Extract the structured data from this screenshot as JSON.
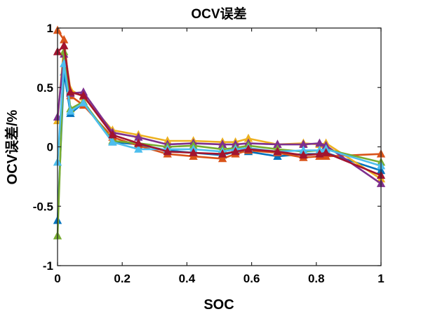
{
  "chart_data": {
    "type": "line",
    "title": "OCV误差",
    "xlabel": "SOC",
    "ylabel": "OCV误差/%",
    "xlim": [
      0,
      1
    ],
    "ylim": [
      -1,
      1
    ],
    "xticks": [
      0,
      0.2,
      0.4,
      0.6,
      0.8,
      1
    ],
    "xtick_labels": [
      "0",
      "0.2",
      "0.4",
      "0.6",
      "0.8",
      "1"
    ],
    "yticks": [
      -1,
      -0.5,
      0,
      0.5,
      1
    ],
    "ytick_labels": [
      "-1",
      "-0.5",
      "0",
      "0.5",
      "1"
    ],
    "grid": false,
    "marker": "triangle",
    "series": [
      {
        "name": "series-1",
        "color": "#0072BD",
        "x": [
          0,
          0.02,
          0.04,
          0.08,
          0.17,
          0.25,
          0.34,
          0.42,
          0.51,
          0.55,
          0.59,
          0.68,
          0.76,
          0.81,
          0.83,
          1
        ],
        "y": [
          -0.62,
          0.63,
          0.28,
          0.37,
          0.04,
          0.02,
          -0.03,
          -0.05,
          -0.07,
          -0.04,
          -0.04,
          -0.08,
          -0.06,
          -0.06,
          -0.05,
          -0.2
        ]
      },
      {
        "name": "series-2",
        "color": "#D95319",
        "x": [
          0,
          0.02,
          0.04,
          0.08,
          0.17,
          0.25,
          0.34,
          0.42,
          0.51,
          0.55,
          0.59,
          0.68,
          0.76,
          0.81,
          0.83,
          1
        ],
        "y": [
          0.98,
          0.9,
          0.43,
          0.35,
          0.08,
          0.01,
          -0.06,
          -0.08,
          -0.1,
          -0.06,
          -0.03,
          -0.05,
          -0.09,
          -0.08,
          -0.08,
          -0.06
        ]
      },
      {
        "name": "series-3",
        "color": "#EDB120",
        "x": [
          0,
          0.02,
          0.04,
          0.08,
          0.17,
          0.25,
          0.34,
          0.42,
          0.51,
          0.55,
          0.59,
          0.68,
          0.76,
          0.81,
          0.83,
          1
        ],
        "y": [
          0.22,
          0.85,
          0.48,
          0.42,
          0.14,
          0.1,
          0.05,
          0.05,
          0.04,
          0.04,
          0.07,
          0.02,
          0.03,
          0.02,
          0.03,
          -0.27
        ]
      },
      {
        "name": "series-4",
        "color": "#7E2F8E",
        "x": [
          0,
          0.02,
          0.04,
          0.08,
          0.17,
          0.25,
          0.34,
          0.42,
          0.51,
          0.55,
          0.59,
          0.68,
          0.76,
          0.81,
          0.83,
          1
        ],
        "y": [
          0.25,
          0.78,
          0.45,
          0.46,
          0.12,
          0.08,
          0.02,
          0.03,
          0.02,
          0.02,
          0.03,
          0.02,
          0.02,
          0.03,
          0.01,
          -0.31
        ]
      },
      {
        "name": "series-5",
        "color": "#77AC30",
        "x": [
          0,
          0.02,
          0.04,
          0.08,
          0.17,
          0.25,
          0.34,
          0.42,
          0.51,
          0.55,
          0.59,
          0.68,
          0.76,
          0.81,
          0.83,
          1
        ],
        "y": [
          -0.75,
          0.8,
          0.32,
          0.38,
          0.05,
          0.03,
          0.0,
          0.01,
          -0.02,
          -0.01,
          0.01,
          -0.02,
          -0.04,
          -0.03,
          -0.02,
          -0.13
        ]
      },
      {
        "name": "series-6",
        "color": "#4DBEEE",
        "x": [
          0,
          0.02,
          0.04,
          0.08,
          0.17,
          0.25,
          0.34,
          0.42,
          0.51,
          0.55,
          0.59,
          0.68,
          0.76,
          0.81,
          0.83,
          1
        ],
        "y": [
          -0.13,
          0.7,
          0.3,
          0.37,
          0.04,
          -0.02,
          -0.02,
          -0.02,
          -0.04,
          -0.02,
          -0.01,
          -0.04,
          -0.03,
          -0.03,
          -0.02,
          -0.16
        ]
      },
      {
        "name": "series-7",
        "color": "#A2142F",
        "x": [
          0,
          0.02,
          0.04,
          0.08,
          0.17,
          0.25,
          0.34,
          0.42,
          0.51,
          0.55,
          0.59,
          0.68,
          0.76,
          0.81,
          0.83,
          1
        ],
        "y": [
          0.8,
          0.85,
          0.46,
          0.43,
          0.1,
          0.03,
          -0.04,
          -0.05,
          -0.06,
          -0.04,
          -0.02,
          -0.04,
          -0.07,
          -0.06,
          -0.05,
          -0.24
        ]
      }
    ]
  }
}
